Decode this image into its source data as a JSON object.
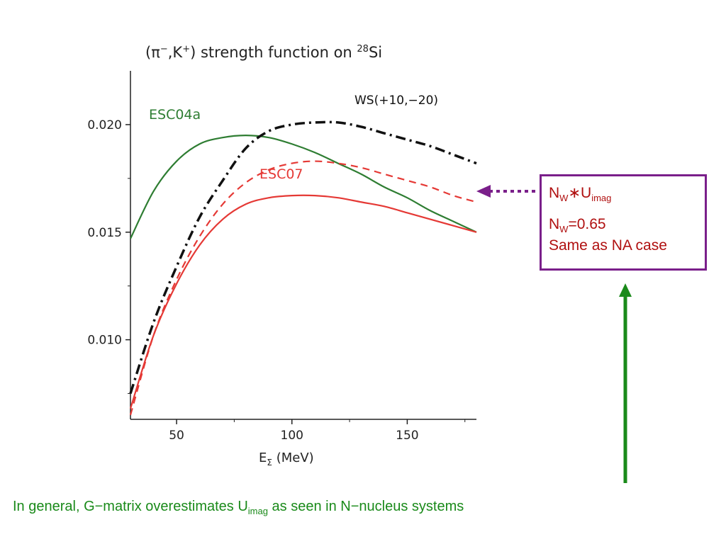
{
  "chart_data": {
    "type": "line",
    "title_pre": "(π",
    "title_sup1": "−",
    "title_mid": ",K",
    "title_sup2": "+",
    "title_post": ") strength function on ",
    "title_sup3": "28",
    "title_end": "Si",
    "xlabel_main": "E",
    "xlabel_sub": "Σ",
    "xlabel_unit": " (MeV)",
    "xlim": [
      30,
      180
    ],
    "ylim": [
      0.0063,
      0.0225
    ],
    "xticks": [
      "50",
      "100",
      "150"
    ],
    "xtick_values": [
      50,
      100,
      150
    ],
    "yticks": [
      "0.010",
      "0.015",
      "0.020"
    ],
    "ytick_values": [
      0.01,
      0.015,
      0.02
    ],
    "series": [
      {
        "name": "ESC04a",
        "color": "#2e7d32",
        "dash": "solid",
        "x": [
          30,
          40,
          50,
          60,
          70,
          80,
          90,
          100,
          110,
          120,
          130,
          140,
          150,
          160,
          170,
          180
        ],
        "y": [
          0.0147,
          0.0169,
          0.0183,
          0.0191,
          0.0194,
          0.0195,
          0.0194,
          0.0191,
          0.0187,
          0.0182,
          0.0177,
          0.0171,
          0.0166,
          0.016,
          0.0155,
          0.015
        ]
      },
      {
        "name": "WS(+10,−20)",
        "color": "#111111",
        "dash": "dashdot",
        "x": [
          30,
          40,
          50,
          60,
          70,
          80,
          90,
          100,
          110,
          120,
          130,
          140,
          150,
          160,
          170,
          180
        ],
        "y": [
          0.0075,
          0.0108,
          0.0134,
          0.0157,
          0.0174,
          0.0189,
          0.0197,
          0.02,
          0.0201,
          0.0201,
          0.0199,
          0.0196,
          0.0193,
          0.019,
          0.0186,
          0.0182
        ]
      },
      {
        "name": "",
        "color": "#e53935",
        "dash": "dashed",
        "x": [
          30,
          40,
          50,
          60,
          70,
          80,
          90,
          100,
          110,
          120,
          130,
          140,
          150,
          160,
          170,
          180
        ],
        "y": [
          0.0065,
          0.0102,
          0.0128,
          0.0148,
          0.0163,
          0.0173,
          0.0179,
          0.0182,
          0.0183,
          0.0182,
          0.018,
          0.0177,
          0.0174,
          0.0171,
          0.0167,
          0.0164
        ]
      },
      {
        "name": "ESC07",
        "color": "#e53935",
        "dash": "solid",
        "x": [
          30,
          40,
          50,
          60,
          70,
          80,
          90,
          100,
          110,
          120,
          130,
          140,
          150,
          160,
          170,
          180
        ],
        "y": [
          0.0068,
          0.0102,
          0.0126,
          0.0144,
          0.0156,
          0.0163,
          0.0166,
          0.0167,
          0.0167,
          0.0166,
          0.0164,
          0.0162,
          0.0159,
          0.0156,
          0.0153,
          0.015
        ]
      }
    ],
    "labels": {
      "esc04a": "ESC04a",
      "ws": "WS(+10,−20)",
      "esc07": "ESC07"
    }
  },
  "callout": {
    "line1_main": "N",
    "line1_sub": "W",
    "line1_mid": "∗U",
    "line1_sub2": "imag",
    "line2_main": "N",
    "line2_sub": "W",
    "line2_rest": "=0.65",
    "line3": "Same as NA case",
    "border_color": "#7a1f8a",
    "text_color": "#b01010"
  },
  "arrows": {
    "dotted_color": "#7a1f8a",
    "up_arrow_color": "#1a8a1a"
  },
  "bottom_note": {
    "text_pre": "In general, G−matrix overestimates U",
    "text_sub": "imag",
    "text_post": "  as seen in N−nucleus systems"
  }
}
